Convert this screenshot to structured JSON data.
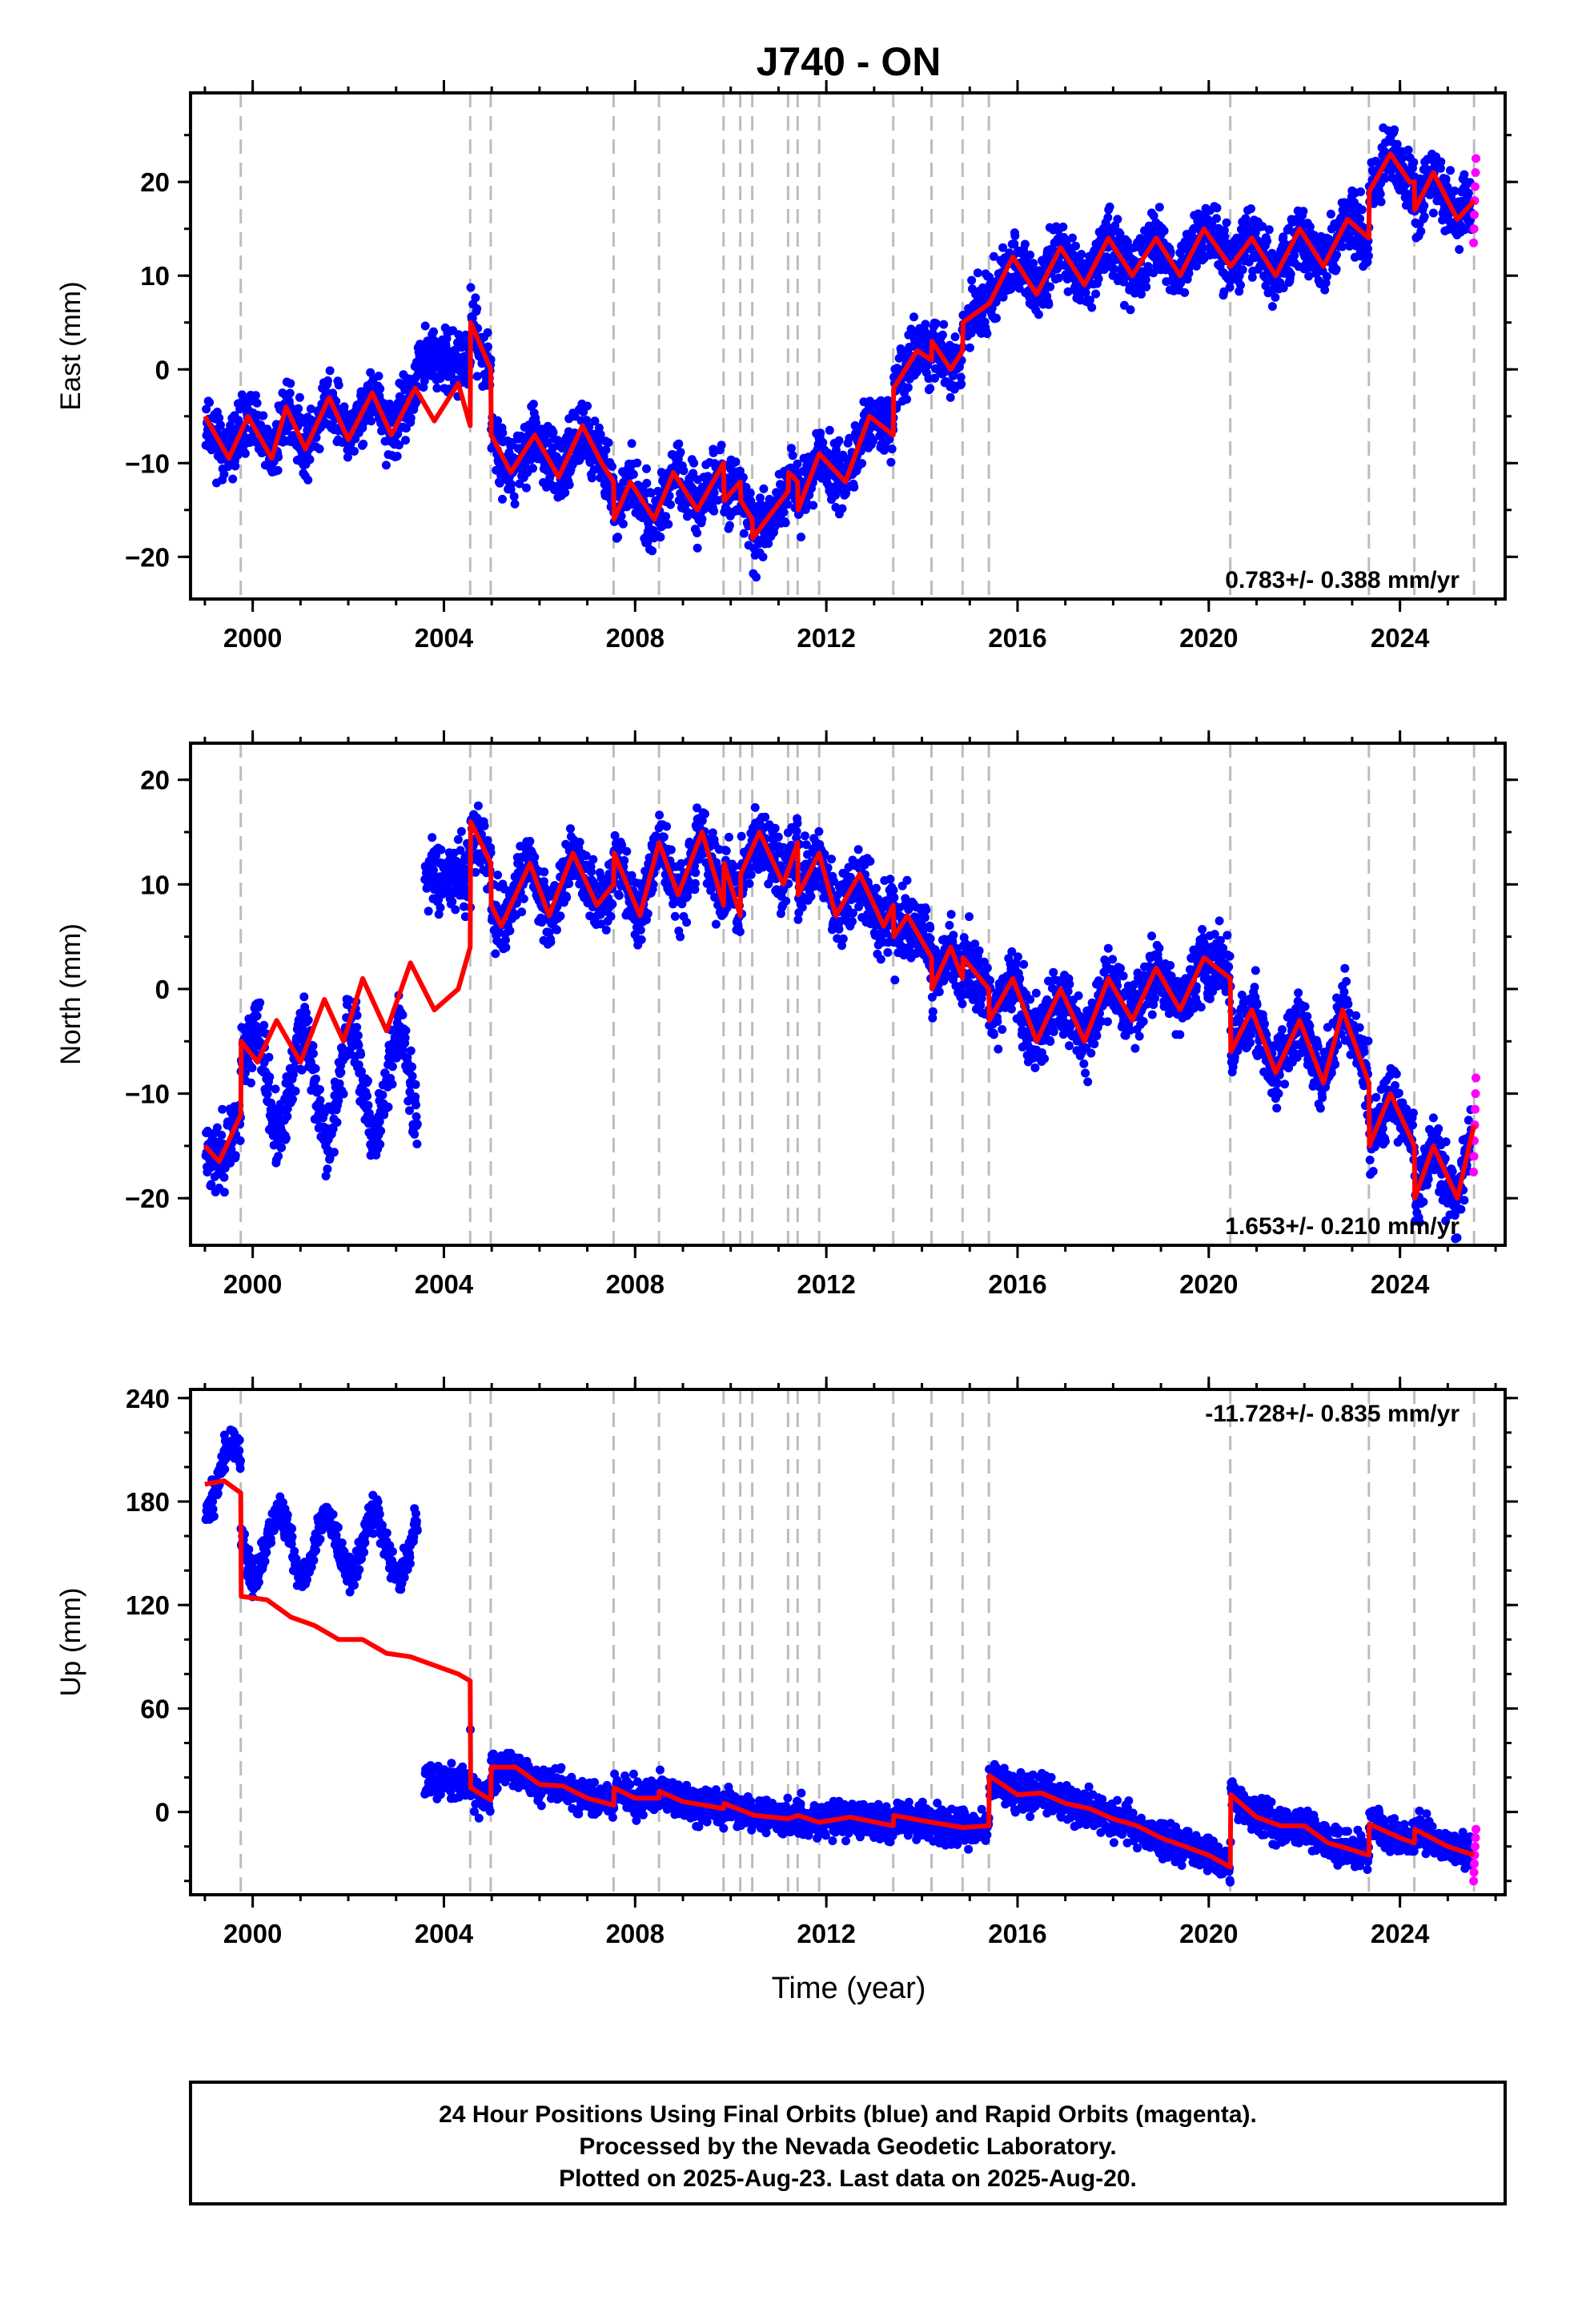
{
  "figure": {
    "title": "J740 - ON",
    "xlabel": "Time (year)",
    "footer": {
      "line1": "24 Hour Positions Using Final Orbits (blue) and Rapid Orbits (magenta).",
      "line2": "Processed by the Nevada Geodetic Laboratory.",
      "line3": "Plotted on 2025-Aug-23. Last data on 2025-Aug-20."
    },
    "colors": {
      "final": "#0000ff",
      "rapid": "#ff00ff",
      "model": "#ff0000",
      "events": "#bdbdbd",
      "frame": "#000000"
    }
  },
  "chart_data": [
    {
      "type": "scatter",
      "name": "east",
      "ylabel": "East (mm)",
      "rate_text": "0.783+/- 0.388 mm/yr",
      "xlim": [
        1998.7,
        2026.2
      ],
      "ylim": [
        -24.5,
        29.5
      ],
      "xticks": [
        2000,
        2004,
        2008,
        2012,
        2016,
        2020,
        2024
      ],
      "yticks": [
        -20,
        -10,
        0,
        10,
        20
      ],
      "grid": false,
      "events": [
        1999.75,
        2004.55,
        2004.98,
        2007.55,
        2008.5,
        2009.85,
        2010.2,
        2010.45,
        2011.2,
        2011.4,
        2011.85,
        2013.4,
        2014.2,
        2014.85,
        2015.4,
        2020.45,
        2023.35,
        2024.3,
        2025.55
      ],
      "model_x": [
        1999.0,
        1999.5,
        1999.9,
        2000.4,
        2000.7,
        2001.1,
        2001.6,
        2002.0,
        2002.5,
        2002.9,
        2003.4,
        2003.8,
        2004.3,
        2004.55,
        2004.56,
        2004.98,
        2004.99,
        2005.4,
        2005.9,
        2006.4,
        2006.9,
        2007.3,
        2007.55,
        2007.56,
        2007.9,
        2008.4,
        2008.8,
        2009.3,
        2009.85,
        2009.86,
        2010.2,
        2010.21,
        2010.45,
        2010.46,
        2010.9,
        2011.2,
        2011.21,
        2011.4,
        2011.41,
        2011.85,
        2012.4,
        2012.9,
        2013.4,
        2013.41,
        2013.9,
        2014.2,
        2014.21,
        2014.6,
        2014.85,
        2014.86,
        2015.4,
        2015.41,
        2015.9,
        2016.4,
        2016.9,
        2017.4,
        2017.9,
        2018.4,
        2018.9,
        2019.4,
        2019.9,
        2020.45,
        2020.46,
        2020.9,
        2021.4,
        2021.9,
        2022.4,
        2022.9,
        2023.35,
        2023.36,
        2023.8,
        2024.2,
        2024.3,
        2024.31,
        2024.7,
        2025.2,
        2025.55
      ],
      "model_y": [
        -5,
        -9.5,
        -5,
        -9.5,
        -4,
        -8.5,
        -3,
        -7.5,
        -2.5,
        -7,
        -2,
        -5.5,
        -1.5,
        -6,
        5,
        0,
        -7,
        -11,
        -7,
        -11.5,
        -6,
        -10,
        -12,
        -16,
        -12,
        -16,
        -11,
        -15,
        -10,
        -14,
        -12,
        -14,
        -16,
        -18,
        -15,
        -13,
        -11,
        -12,
        -15,
        -9,
        -12,
        -5,
        -7,
        -2,
        2,
        1,
        3,
        0,
        2,
        5,
        7,
        7,
        12,
        8,
        13,
        9,
        14,
        10,
        14,
        10,
        15,
        11,
        11,
        14,
        10,
        15,
        11,
        16,
        14,
        19,
        23,
        20,
        20,
        17,
        21,
        16,
        18
      ],
      "seed": 11
    },
    {
      "type": "scatter",
      "name": "north",
      "ylabel": "North (mm)",
      "rate_text": "1.653+/- 0.210 mm/yr",
      "xlim": [
        1998.7,
        2026.2
      ],
      "ylim": [
        -24.5,
        23.5
      ],
      "xticks": [
        2000,
        2004,
        2008,
        2012,
        2016,
        2020,
        2024
      ],
      "yticks": [
        -20,
        -10,
        0,
        10,
        20
      ],
      "grid": false,
      "events": [
        1999.75,
        2004.55,
        2004.98,
        2007.55,
        2008.5,
        2009.85,
        2010.2,
        2010.45,
        2011.2,
        2011.4,
        2011.85,
        2013.4,
        2014.2,
        2014.85,
        2015.4,
        2020.45,
        2023.35,
        2024.3,
        2025.55
      ],
      "model_x": [
        1999.0,
        1999.3,
        1999.75,
        1999.76,
        2000.1,
        2000.5,
        2001.0,
        2001.5,
        2001.9,
        2002.3,
        2002.8,
        2003.3,
        2003.8,
        2004.3,
        2004.55,
        2004.56,
        2004.98,
        2004.99,
        2005.2,
        2005.8,
        2006.2,
        2006.7,
        2007.2,
        2007.55,
        2007.56,
        2008.1,
        2008.5,
        2008.9,
        2009.4,
        2009.85,
        2009.86,
        2010.2,
        2010.21,
        2010.6,
        2011.1,
        2011.4,
        2011.41,
        2011.85,
        2012.2,
        2012.7,
        2013.2,
        2013.4,
        2013.41,
        2013.7,
        2014.2,
        2014.21,
        2014.6,
        2014.85,
        2014.86,
        2015.4,
        2015.41,
        2015.9,
        2016.4,
        2016.9,
        2017.4,
        2017.9,
        2018.4,
        2018.9,
        2019.4,
        2019.9,
        2020.45,
        2020.46,
        2020.9,
        2021.4,
        2021.9,
        2022.4,
        2022.8,
        2023.35,
        2023.36,
        2023.8,
        2024.3,
        2024.31,
        2024.7,
        2025.2,
        2025.55
      ],
      "model_y": [
        -15,
        -16.5,
        -12,
        -5,
        -7,
        -3,
        -7,
        -1,
        -5,
        1,
        -4,
        2.5,
        -2,
        0,
        4,
        16,
        12,
        8,
        6,
        12,
        7,
        13,
        8,
        10,
        13,
        7,
        14,
        9,
        15,
        8,
        12,
        7,
        11,
        15,
        10,
        14,
        9,
        13,
        7,
        11,
        6,
        8,
        5,
        7,
        3,
        0,
        4,
        1,
        3,
        0,
        -3,
        1,
        -5,
        0,
        -5,
        1,
        -3,
        2,
        -2,
        3,
        1,
        -6,
        -2,
        -8,
        -3,
        -9,
        -2,
        -9,
        -15,
        -10,
        -15,
        -20,
        -15,
        -20,
        -13
      ],
      "seed": 23
    },
    {
      "type": "scatter",
      "name": "up",
      "ylabel": "Up (mm)",
      "rate_text": "-11.728+/- 0.835 mm/yr",
      "xlim": [
        1998.7,
        2026.2
      ],
      "ylim": [
        -48,
        245
      ],
      "xticks": [
        2000,
        2004,
        2008,
        2012,
        2016,
        2020,
        2024
      ],
      "yticks": [
        0,
        60,
        120,
        180,
        240
      ],
      "grid": false,
      "events": [
        1999.75,
        2004.55,
        2004.98,
        2007.55,
        2008.5,
        2009.85,
        2010.2,
        2010.45,
        2011.2,
        2011.4,
        2011.85,
        2013.4,
        2014.2,
        2014.85,
        2015.4,
        2020.45,
        2023.35,
        2024.3,
        2025.55
      ],
      "model_x": [
        1999.0,
        1999.4,
        1999.75,
        1999.76,
        2000.3,
        2000.8,
        2001.3,
        2001.8,
        2002.3,
        2002.8,
        2003.3,
        2003.8,
        2004.3,
        2004.55,
        2004.56,
        2004.98,
        2004.99,
        2005.5,
        2006.0,
        2006.5,
        2007.0,
        2007.55,
        2007.56,
        2008.0,
        2008.5,
        2008.51,
        2009.0,
        2009.85,
        2009.86,
        2010.5,
        2011.2,
        2011.4,
        2011.85,
        2012.5,
        2013.4,
        2013.41,
        2014.2,
        2014.85,
        2015.4,
        2015.41,
        2016.0,
        2016.5,
        2017.0,
        2017.5,
        2018.0,
        2018.5,
        2019.0,
        2019.5,
        2020.0,
        2020.45,
        2020.46,
        2021.0,
        2021.5,
        2022.0,
        2022.5,
        2023.0,
        2023.35,
        2023.36,
        2024.0,
        2024.3,
        2024.31,
        2025.0,
        2025.55
      ],
      "model_y": [
        190,
        192,
        185,
        125,
        123,
        113,
        108,
        100,
        100,
        92,
        90,
        85,
        80,
        76,
        14,
        7,
        26,
        26,
        16,
        15,
        8,
        4,
        14,
        8,
        8,
        12,
        6,
        2,
        5,
        -2,
        -4,
        -2,
        -6,
        -3,
        -8,
        -2,
        -6,
        -9,
        -8,
        21,
        10,
        11,
        5,
        2,
        -4,
        -8,
        -15,
        -20,
        -25,
        -32,
        10,
        -3,
        -8,
        -8,
        -18,
        -22,
        -25,
        -7,
        -15,
        -18,
        -10,
        -20,
        -25
      ],
      "seed": 37
    }
  ]
}
